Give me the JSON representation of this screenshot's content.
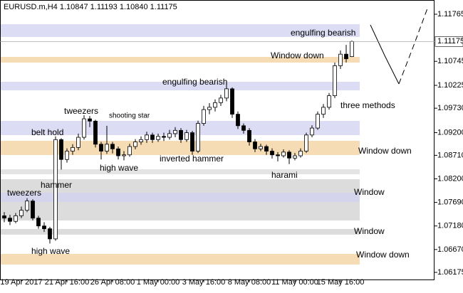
{
  "chart_data": {
    "type": "candlestick",
    "title": "EURUSD.m,H4  1.10847 1.11193 1.10840 1.11175",
    "ohlc": [
      [
        1.074,
        1.0748,
        1.0726,
        1.0735
      ],
      [
        1.0735,
        1.0742,
        1.072,
        1.0728
      ],
      [
        1.0728,
        1.0746,
        1.0724,
        1.074
      ],
      [
        1.074,
        1.076,
        1.0735,
        1.0752
      ],
      [
        1.0752,
        1.0778,
        1.0748,
        1.0772
      ],
      [
        1.0772,
        1.0776,
        1.073,
        1.0735
      ],
      [
        1.0735,
        1.074,
        1.0712,
        1.0718
      ],
      [
        1.0718,
        1.0726,
        1.0705,
        1.0712
      ],
      [
        1.0712,
        1.0716,
        1.068,
        1.069
      ],
      [
        1.069,
        1.0912,
        1.0686,
        1.0905
      ],
      [
        1.0905,
        1.0908,
        1.084,
        1.0862
      ],
      [
        1.0862,
        1.0886,
        1.0855,
        1.088
      ],
      [
        1.088,
        1.0895,
        1.0872,
        1.0888
      ],
      [
        1.0888,
        1.0918,
        1.0882,
        1.091
      ],
      [
        1.091,
        1.0958,
        1.0905,
        1.095
      ],
      [
        1.095,
        1.0956,
        1.0932,
        1.0945
      ],
      [
        1.0945,
        1.0948,
        1.0888,
        1.0895
      ],
      [
        1.0895,
        1.09,
        1.0862,
        1.088
      ],
      [
        1.088,
        1.0935,
        1.0874,
        1.0895
      ],
      [
        1.0895,
        1.09,
        1.0875,
        1.0885
      ],
      [
        1.0885,
        1.089,
        1.0862,
        1.087
      ],
      [
        1.087,
        1.088,
        1.086,
        1.0872
      ],
      [
        1.0872,
        1.0896,
        1.0868,
        1.089
      ],
      [
        1.089,
        1.0906,
        1.0884,
        1.09
      ],
      [
        1.09,
        1.0912,
        1.0894,
        1.0905
      ],
      [
        1.0905,
        1.0922,
        1.0898,
        1.0915
      ],
      [
        1.0915,
        1.092,
        1.0898,
        1.0905
      ],
      [
        1.0905,
        1.0918,
        1.09,
        1.0912
      ],
      [
        1.0912,
        1.092,
        1.0902,
        1.091
      ],
      [
        1.091,
        1.0926,
        1.0905,
        1.0918
      ],
      [
        1.0918,
        1.0932,
        1.091,
        1.0925
      ],
      [
        1.0925,
        1.093,
        1.0898,
        1.0905
      ],
      [
        1.0905,
        1.0926,
        1.09,
        1.092
      ],
      [
        1.092,
        1.0924,
        1.0872,
        1.088
      ],
      [
        1.088,
        1.0946,
        1.0876,
        1.094
      ],
      [
        1.094,
        1.0978,
        1.0935,
        1.097
      ],
      [
        1.097,
        1.0984,
        1.096,
        1.0975
      ],
      [
        1.0975,
        1.0992,
        1.0966,
        1.0985
      ],
      [
        1.0985,
        1.1002,
        1.0978,
        1.0995
      ],
      [
        1.0995,
        1.103,
        1.0988,
        1.1015
      ],
      [
        1.1015,
        1.1018,
        1.0952,
        1.096
      ],
      [
        1.096,
        1.0966,
        1.0928,
        1.0935
      ],
      [
        1.0935,
        1.094,
        1.0918,
        1.0925
      ],
      [
        1.0925,
        1.093,
        1.0892,
        1.09
      ],
      [
        1.09,
        1.0906,
        1.0878,
        1.0885
      ],
      [
        1.0885,
        1.0896,
        1.088,
        1.089
      ],
      [
        1.089,
        1.0894,
        1.0872,
        1.088
      ],
      [
        1.088,
        1.0886,
        1.0864,
        1.0872
      ],
      [
        1.0872,
        1.0878,
        1.0858,
        1.087
      ],
      [
        1.087,
        1.0884,
        1.0866,
        1.0878
      ],
      [
        1.0878,
        1.0882,
        1.0852,
        1.0865
      ],
      [
        1.0865,
        1.0876,
        1.086,
        1.087
      ],
      [
        1.087,
        1.0886,
        1.0866,
        1.088
      ],
      [
        1.088,
        1.092,
        1.0876,
        1.0915
      ],
      [
        1.0915,
        1.0936,
        1.091,
        1.093
      ],
      [
        1.093,
        1.0966,
        1.0926,
        1.096
      ],
      [
        1.096,
        1.0982,
        1.0952,
        1.0975
      ],
      [
        1.0975,
        1.1006,
        1.097,
        1.1
      ],
      [
        1.1,
        1.1072,
        1.0995,
        1.1065
      ],
      [
        1.1065,
        1.1098,
        1.1058,
        1.109
      ],
      [
        1.109,
        1.111,
        1.1072,
        1.108
      ],
      [
        1.10847,
        1.11193,
        1.1084,
        1.11175
      ]
    ],
    "current_price": 1.11175,
    "xlim": [
      -0.5,
      61.5
    ],
    "xticks": [
      {
        "value": 3,
        "label": "19 Apr 2017"
      },
      {
        "value": 11,
        "label": "21 Apr 16:00"
      },
      {
        "value": 19,
        "label": "26 Apr 08:00"
      },
      {
        "value": 27,
        "label": "1 May 00:00"
      },
      {
        "value": 35,
        "label": "3 May 16:00"
      },
      {
        "value": 43,
        "label": "8 May 08:00"
      },
      {
        "value": 51,
        "label": "11 May 00:00"
      },
      {
        "value": 59,
        "label": "15 May 16:00"
      }
    ],
    "ylim": [
      1.06021,
      1.12073
    ],
    "yticks": [
      1.11765,
      1.10745,
      1.10225,
      {
        "value": 1.0973,
        "label": "1.09730"
      },
      {
        "value": 1.092,
        "label": "1.09200"
      },
      {
        "value": 1.0871,
        "label": "1.08710"
      },
      {
        "value": 1.082,
        "label": "1.08200"
      },
      {
        "value": 1.0769,
        "label": "1.07690"
      },
      {
        "value": 1.0718,
        "label": "1.07180"
      },
      {
        "value": 1.0667,
        "label": "1.06670"
      },
      1.06175
    ],
    "zones": [
      {
        "range": [
          1.11273,
          1.1155
        ],
        "color": "#dcdcf5"
      },
      {
        "range": [
          1.10718,
          1.10841
        ],
        "color": "#f5dcb4"
      },
      {
        "range": [
          1.10117,
          1.10302
        ],
        "color": "#dcdcf5"
      },
      {
        "range": [
          1.09147,
          1.09455
        ],
        "color": "#dcdcf5"
      },
      {
        "range": [
          1.08716,
          1.09024
        ],
        "color": "#f5dcb4"
      },
      {
        "range": [
          1.083,
          1.08408
        ],
        "color": "#e4e4e4"
      },
      {
        "range": [
          1.07299,
          1.08192
        ],
        "color": "#dcdcdc"
      },
      {
        "range": [
          1.077,
          1.079
        ],
        "color": "#d4d4ec"
      },
      {
        "range": [
          1.06992,
          1.07115
        ],
        "color": "#dcdcdc"
      },
      {
        "range": [
          1.06345,
          1.06576
        ],
        "color": "#f5dcb4"
      }
    ],
    "annotations": [
      "engulfing bearish",
      "Window down",
      "engulfing bearish",
      "tweezers",
      "shooting star",
      "belt hold",
      "three methods",
      "Window down",
      "inverted hammer",
      "high wave",
      "harami",
      "hammer",
      "tweezers",
      "Window",
      "Window",
      "high wave",
      "Window down"
    ]
  }
}
